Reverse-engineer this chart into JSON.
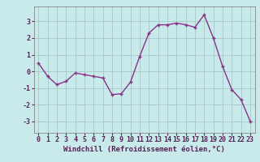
{
  "x": [
    0,
    1,
    2,
    3,
    4,
    5,
    6,
    7,
    8,
    9,
    10,
    11,
    12,
    13,
    14,
    15,
    16,
    17,
    18,
    19,
    20,
    21,
    22,
    23
  ],
  "y": [
    0.5,
    -0.3,
    -0.8,
    -0.6,
    -0.1,
    -0.2,
    -0.3,
    -0.4,
    -1.4,
    -1.35,
    -0.65,
    0.9,
    2.3,
    2.8,
    2.8,
    2.9,
    2.8,
    2.65,
    3.4,
    2.0,
    0.3,
    -1.1,
    -1.7,
    -3.0
  ],
  "line_color": "#883388",
  "marker": "+",
  "marker_size": 3.5,
  "linewidth": 1.0,
  "bg_color": "#c8eaea",
  "grid_color": "#a8c8c8",
  "xlabel": "Windchill (Refroidissement éolien,°C)",
  "xlabel_fontsize": 6.5,
  "tick_fontsize": 6.0,
  "xlim": [
    -0.5,
    23.5
  ],
  "ylim": [
    -3.7,
    3.9
  ],
  "yticks": [
    -3,
    -2,
    -1,
    0,
    1,
    2,
    3
  ],
  "xticks": [
    0,
    1,
    2,
    3,
    4,
    5,
    6,
    7,
    8,
    9,
    10,
    11,
    12,
    13,
    14,
    15,
    16,
    17,
    18,
    19,
    20,
    21,
    22,
    23
  ]
}
